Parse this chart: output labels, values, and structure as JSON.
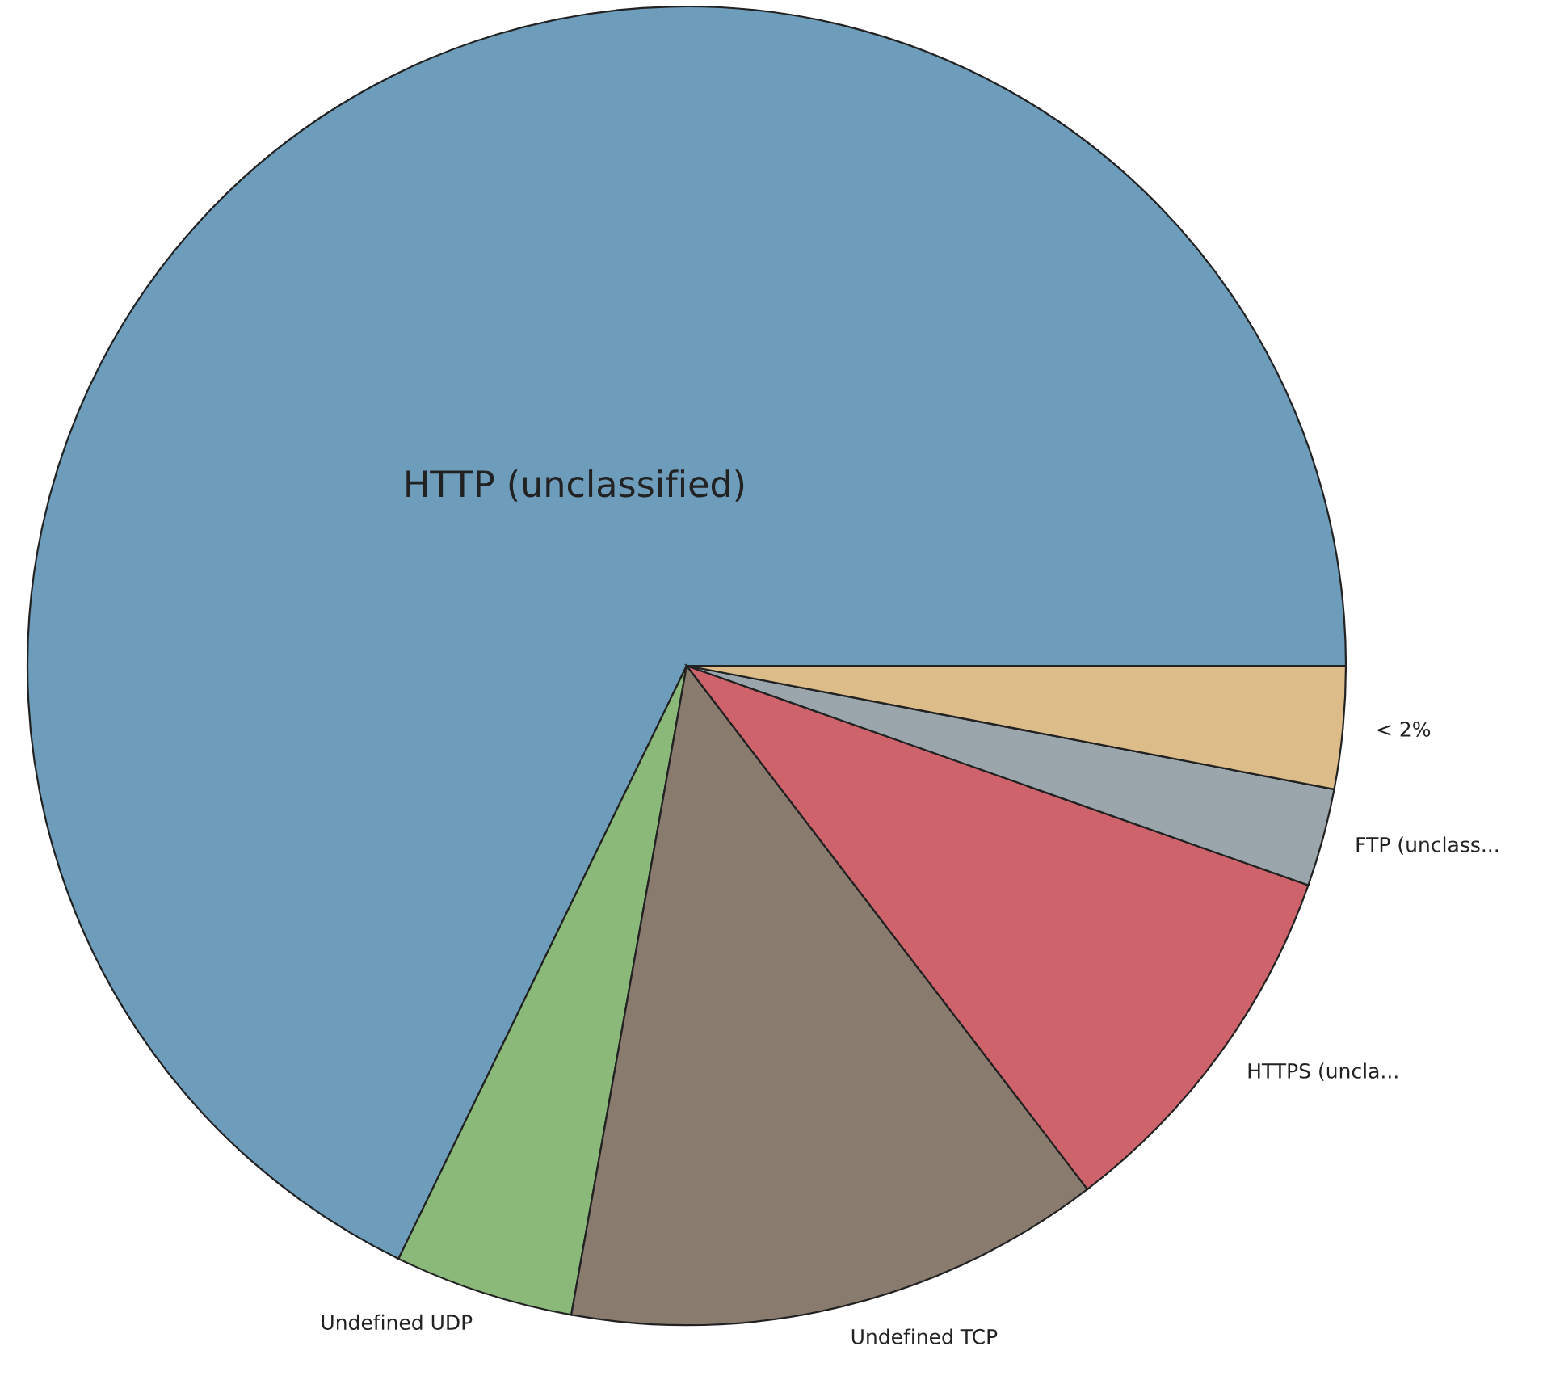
{
  "chart_data": {
    "type": "pie",
    "categories": [
      "HTTP (unclassified)",
      "Undefined UDP",
      "Undefined TCP",
      "HTTPS (uncla...",
      "FTP (unclass...",
      "< 2%"
    ],
    "values": [
      67.8,
      4.4,
      13.2,
      9.2,
      2.4,
      3.0
    ],
    "colors": [
      "#6d9dbb",
      "#8ab97a",
      "#897b6e",
      "#cf636b",
      "#9ba6ac",
      "#dcbd8a"
    ]
  }
}
